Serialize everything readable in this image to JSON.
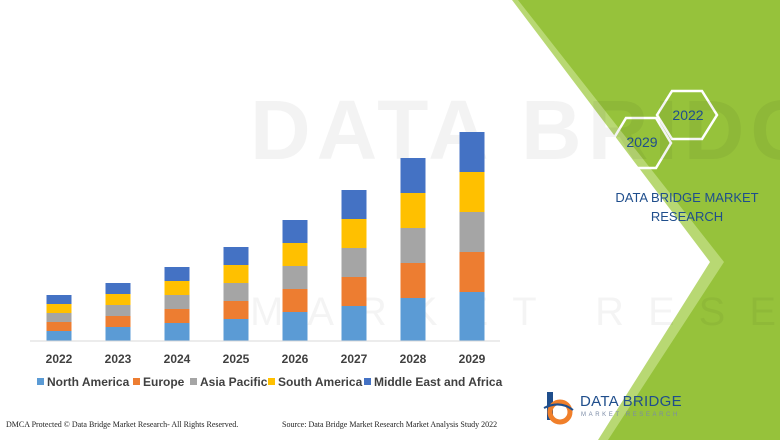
{
  "colors": {
    "panel_green": "#96c23b",
    "panel_light_green": "#b8d873",
    "brand_blue": "#1f4e8c",
    "logo_orange": "#f07f2a"
  },
  "watermark": {
    "word": "DATA BRIDGE",
    "sub": "MARKET RESEARCH"
  },
  "hexagons": {
    "a_label": "2029",
    "b_label": "2022"
  },
  "brand": {
    "title": "DATA BRIDGE MARKET RESEARCH"
  },
  "logo": {
    "name": "DATA BRIDGE",
    "tagline": "MARKET RESEARCH",
    "icon": "data-bridge-logo-icon"
  },
  "footer": {
    "left": "DMCA Protected © Data Bridge Market Research- All Rights Reserved.",
    "right": "Source: Data Bridge Market Research Market Analysis Study 2022"
  },
  "chart_data": {
    "type": "bar",
    "stacked": true,
    "title": "",
    "xlabel": "",
    "ylabel": "",
    "grid": false,
    "legend_position": "bottom",
    "categories": [
      "2022",
      "2023",
      "2024",
      "2025",
      "2026",
      "2027",
      "2028",
      "2029"
    ],
    "series": [
      {
        "name": "North America",
        "color": "#5b9bd5",
        "values": [
          10,
          14,
          18,
          22,
          29,
          35,
          43,
          49
        ]
      },
      {
        "name": "Europe",
        "color": "#ed7d31",
        "values": [
          9,
          11,
          14,
          18,
          23,
          29,
          35,
          40
        ]
      },
      {
        "name": "Asia Pacific",
        "color": "#a5a5a5",
        "values": [
          9,
          11,
          14,
          18,
          23,
          29,
          35,
          40
        ]
      },
      {
        "name": "South America",
        "color": "#ffc000",
        "values": [
          9,
          11,
          14,
          18,
          23,
          29,
          35,
          40
        ]
      },
      {
        "name": "Middle East and Africa",
        "color": "#4472c4",
        "values": [
          9,
          11,
          14,
          18,
          23,
          29,
          35,
          40
        ]
      }
    ]
  }
}
